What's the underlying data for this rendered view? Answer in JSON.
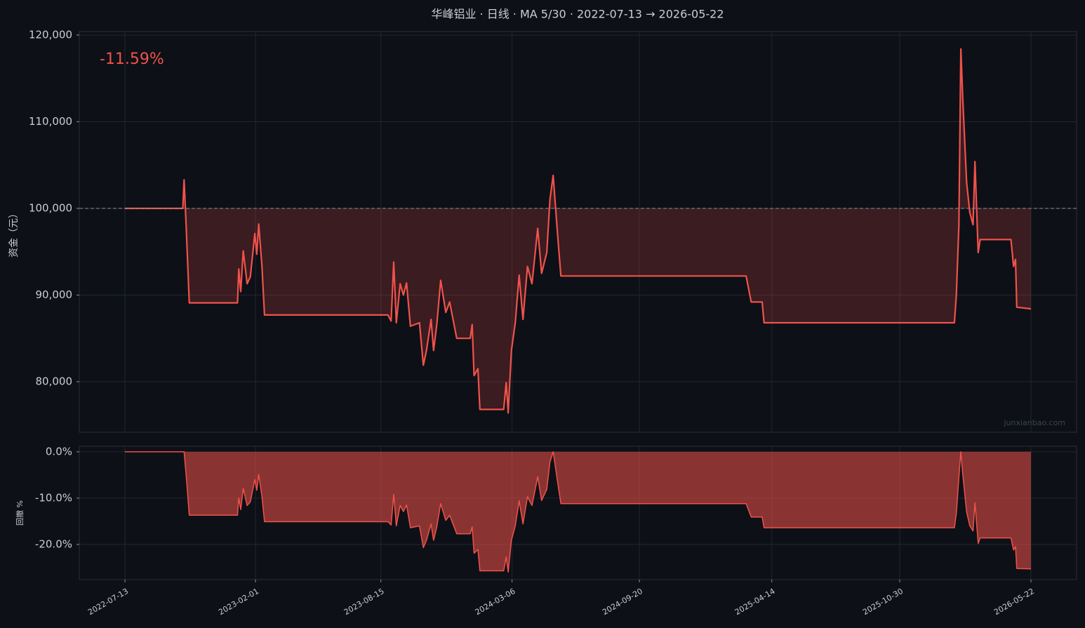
{
  "chart_data": [
    {
      "type": "line",
      "title": "华峰铝业 · 日线 · MA 5/30 · 2022-07-13 → 2026-05-22",
      "y_label": "资金（元）",
      "annotation": "-11.59%",
      "watermark": "junxianbao.com",
      "reference_line": 100000,
      "grid": true,
      "x": [
        "2022-07-13",
        "2022-10-11",
        "2022-10-13",
        "2022-10-16",
        "2022-10-21",
        "2023-01-04",
        "2023-01-06",
        "2023-01-09",
        "2023-01-13",
        "2023-01-19",
        "2023-01-24",
        "2023-01-31",
        "2023-02-03",
        "2023-02-06",
        "2023-02-11",
        "2023-02-15",
        "2023-08-26",
        "2023-08-31",
        "2023-09-04",
        "2023-09-08",
        "2023-09-14",
        "2023-09-19",
        "2023-09-24",
        "2023-09-30",
        "2023-10-14",
        "2023-10-20",
        "2023-10-25",
        "2023-11-01",
        "2023-11-05",
        "2023-11-10",
        "2023-11-16",
        "2023-11-24",
        "2023-11-30",
        "2023-12-11",
        "2024-01-01",
        "2024-01-04",
        "2024-01-07",
        "2024-01-13",
        "2024-01-16",
        "2024-02-22",
        "2024-02-26",
        "2024-02-29",
        "2024-03-05",
        "2024-03-11",
        "2024-03-17",
        "2024-03-23",
        "2024-03-30",
        "2024-04-06",
        "2024-04-15",
        "2024-04-21",
        "2024-04-29",
        "2024-05-04",
        "2024-05-09",
        "2024-05-16",
        "2024-05-21",
        "2025-03-05",
        "2025-03-13",
        "2025-03-30",
        "2025-04-02",
        "2026-01-23",
        "2026-01-26",
        "2026-01-30",
        "2026-02-02",
        "2026-02-05",
        "2026-02-11",
        "2026-02-16",
        "2026-02-21",
        "2026-02-24",
        "2026-03-01",
        "2026-03-04",
        "2026-04-21",
        "2026-04-25",
        "2026-04-28",
        "2026-04-30",
        "2026-05-22"
      ],
      "series": [
        {
          "color": "#f0524a",
          "values": [
            100000,
            100000,
            103300,
            98300,
            89100,
            89100,
            93000,
            90400,
            95100,
            91300,
            92100,
            97100,
            94700,
            98200,
            93400,
            87700,
            87700,
            87000,
            93800,
            86800,
            91300,
            90000,
            91400,
            86400,
            86800,
            81900,
            83600,
            87200,
            83600,
            86600,
            91700,
            88000,
            89200,
            85000,
            85000,
            86600,
            80700,
            81500,
            76800,
            76800,
            79900,
            76400,
            83600,
            86800,
            92300,
            87200,
            93300,
            91300,
            97700,
            92500,
            94900,
            101000,
            103800,
            96900,
            92200,
            92200,
            89200,
            89200,
            86800,
            86800,
            90000,
            98100,
            118400,
            112700,
            103000,
            99500,
            98100,
            105400,
            94900,
            96400,
            96400,
            93300,
            94100,
            88600,
            88410
          ]
        }
      ],
      "xlim": [
        "2022-05-03",
        "2026-08-01"
      ],
      "ylim": [
        74170,
        120400
      ],
      "yticks": [
        {
          "value": 80000,
          "label": "80,000"
        },
        {
          "value": 90000,
          "label": "90,000"
        },
        {
          "value": 100000,
          "label": "100,000"
        },
        {
          "value": 110000,
          "label": "110,000"
        },
        {
          "value": 120000,
          "label": "120,000"
        }
      ]
    },
    {
      "type": "area",
      "y_label": "回撤 %",
      "grid": true,
      "x": [
        "2022-07-13",
        "2022-10-11",
        "2022-10-13",
        "2022-10-16",
        "2022-10-21",
        "2023-01-04",
        "2023-01-06",
        "2023-01-09",
        "2023-01-13",
        "2023-01-19",
        "2023-01-24",
        "2023-01-31",
        "2023-02-03",
        "2023-02-06",
        "2023-02-11",
        "2023-02-15",
        "2023-08-26",
        "2023-08-31",
        "2023-09-04",
        "2023-09-08",
        "2023-09-14",
        "2023-09-19",
        "2023-09-24",
        "2023-09-30",
        "2023-10-14",
        "2023-10-20",
        "2023-10-25",
        "2023-11-01",
        "2023-11-05",
        "2023-11-10",
        "2023-11-16",
        "2023-11-24",
        "2023-11-30",
        "2023-12-11",
        "2024-01-01",
        "2024-01-04",
        "2024-01-07",
        "2024-01-13",
        "2024-01-16",
        "2024-02-22",
        "2024-02-26",
        "2024-02-29",
        "2024-03-05",
        "2024-03-11",
        "2024-03-17",
        "2024-03-23",
        "2024-03-30",
        "2024-04-06",
        "2024-04-15",
        "2024-04-21",
        "2024-04-29",
        "2024-05-04",
        "2024-05-09",
        "2024-05-16",
        "2024-05-21",
        "2025-03-05",
        "2025-03-13",
        "2025-03-30",
        "2025-04-02",
        "2026-01-23",
        "2026-01-26",
        "2026-01-30",
        "2026-02-02",
        "2026-02-05",
        "2026-02-11",
        "2026-02-16",
        "2026-02-21",
        "2026-02-24",
        "2026-03-01",
        "2026-03-04",
        "2026-04-21",
        "2026-04-25",
        "2026-04-28",
        "2026-04-30",
        "2026-05-22"
      ],
      "series": [
        {
          "color": "#f0524a",
          "values": [
            0,
            0,
            0,
            -4.8,
            -13.7,
            -13.7,
            -10.0,
            -12.5,
            -7.9,
            -11.6,
            -10.8,
            -6.0,
            -8.3,
            -4.9,
            -9.6,
            -15.1,
            -15.1,
            -15.8,
            -9.2,
            -16.0,
            -11.6,
            -12.9,
            -11.5,
            -16.4,
            -16.0,
            -20.7,
            -19.1,
            -15.6,
            -19.1,
            -16.2,
            -11.2,
            -14.8,
            -13.7,
            -17.7,
            -17.7,
            -16.2,
            -21.9,
            -21.1,
            -25.7,
            -25.7,
            -22.7,
            -26.0,
            -19.1,
            -16.0,
            -10.6,
            -15.6,
            -9.7,
            -11.6,
            -5.4,
            -10.5,
            -8.1,
            -2.2,
            0,
            -6.6,
            -11.2,
            -11.2,
            -14.1,
            -14.1,
            -16.4,
            -16.4,
            -13.3,
            -5.5,
            0,
            -4.8,
            -13.0,
            -16.0,
            -17.1,
            -11.0,
            -19.8,
            -18.6,
            -18.6,
            -21.2,
            -20.5,
            -25.2,
            -25.3
          ]
        }
      ],
      "xlim": [
        "2022-05-03",
        "2026-08-01"
      ],
      "ylim": [
        -27.6,
        1.2
      ],
      "xticks": [
        "2022-07-13",
        "2023-02-01",
        "2023-08-15",
        "2024-03-06",
        "2024-09-20",
        "2025-04-14",
        "2025-10-30",
        "2026-05-22"
      ],
      "yticks": [
        {
          "value": -20,
          "label": "-20.0%"
        },
        {
          "value": -10,
          "label": "-10.0%"
        },
        {
          "value": 0,
          "label": "0.0%"
        }
      ]
    }
  ]
}
